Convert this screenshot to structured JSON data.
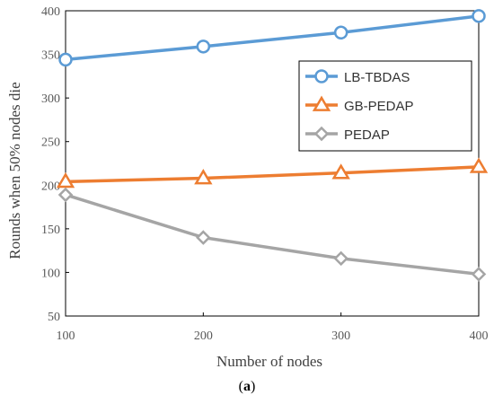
{
  "caption": {
    "open": "(",
    "letter": "a",
    "close": ")"
  },
  "chart_data": {
    "type": "line",
    "title": "",
    "xlabel": "Number of nodes",
    "ylabel": "Rounds when 50% nodes die",
    "x": [
      100,
      200,
      300,
      400
    ],
    "xlim": [
      100,
      400
    ],
    "ylim": [
      50,
      400
    ],
    "xticks": [
      "100",
      "200",
      "300",
      "400"
    ],
    "yticks": [
      "50",
      "100",
      "150",
      "200",
      "250",
      "300",
      "350",
      "400"
    ],
    "grid": false,
    "legend_position": "top-right",
    "series": [
      {
        "name": "LB-TBDAS",
        "values": [
          344,
          359,
          375,
          394
        ],
        "color": "#5B9BD5",
        "marker": "circle"
      },
      {
        "name": "GB-PEDAP",
        "values": [
          204,
          208,
          214,
          221
        ],
        "color": "#ED7D31",
        "marker": "triangle"
      },
      {
        "name": "PEDAP",
        "values": [
          189,
          140,
          116,
          98
        ],
        "color": "#A5A5A5",
        "marker": "diamond"
      }
    ]
  }
}
